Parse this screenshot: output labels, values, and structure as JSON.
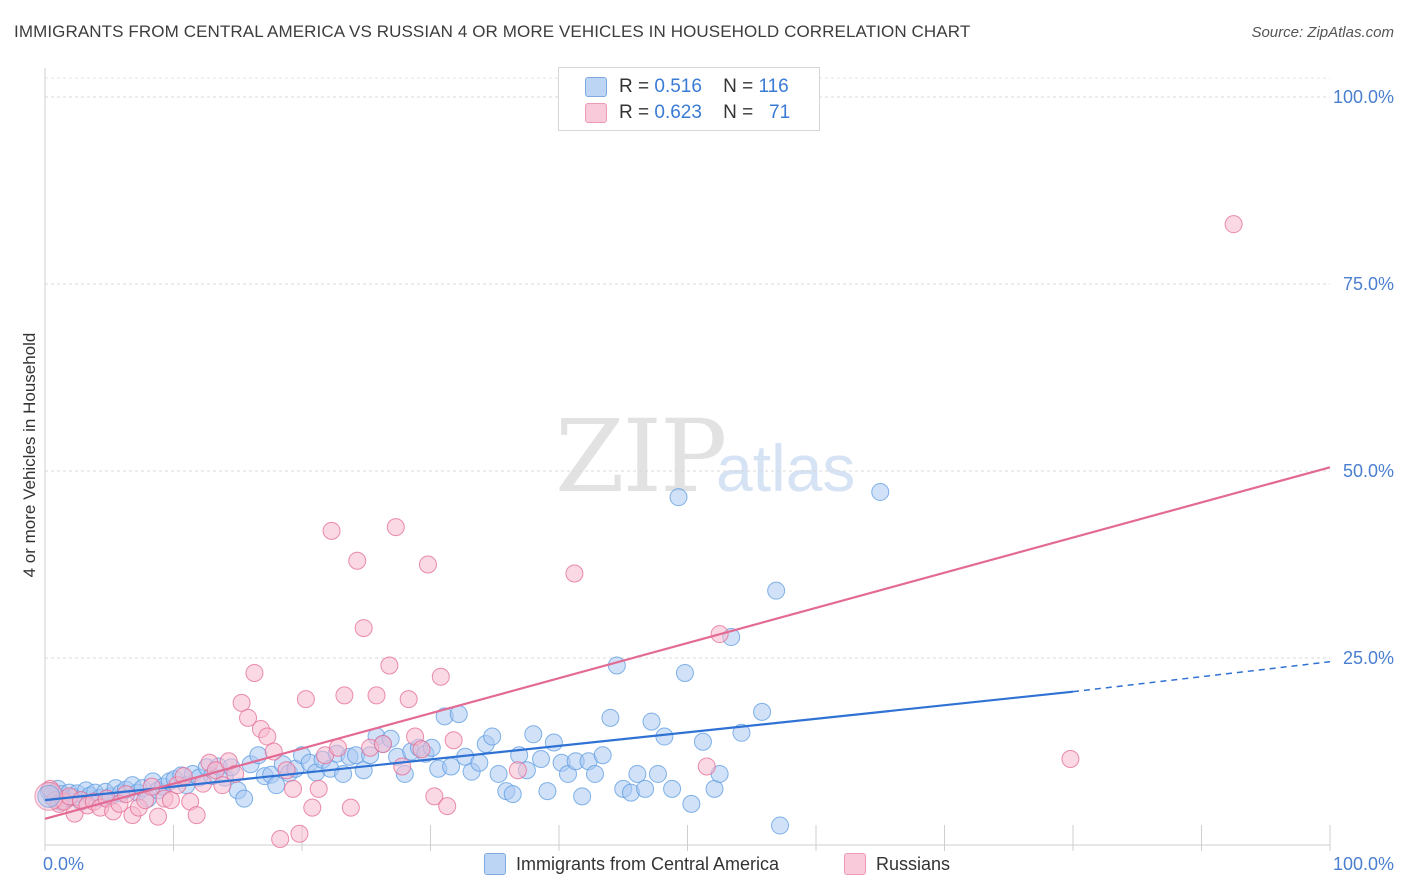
{
  "title": "IMMIGRANTS FROM CENTRAL AMERICA VS RUSSIAN 4 OR MORE VEHICLES IN HOUSEHOLD CORRELATION CHART",
  "source": "Source: ZipAtlas.com",
  "watermark": {
    "zip": "ZIP",
    "atlas": "atlas"
  },
  "legend_top": {
    "rows": [
      {
        "r_label": "R =",
        "r_value": "0.516",
        "n_label": "N =",
        "n_value": "116",
        "color": "#a9c9f2"
      },
      {
        "r_label": "R =",
        "r_value": "0.623",
        "n_label": "N =",
        "n_value": "71",
        "color": "#f7b9cd"
      }
    ]
  },
  "legend_bottom": [
    {
      "label": "Immigrants from Central America",
      "color": "#a9c9f2"
    },
    {
      "label": "Russians",
      "color": "#f7b9cd"
    }
  ],
  "chart_data": {
    "type": "scatter",
    "title": "IMMIGRANTS FROM CENTRAL AMERICA VS RUSSIAN 4 OR MORE VEHICLES IN HOUSEHOLD CORRELATION CHART",
    "xlabel": "",
    "ylabel": "4 or more Vehicles in Household",
    "xlim": [
      0,
      100
    ],
    "ylim": [
      0,
      105
    ],
    "x_tick_labels": [
      "0.0%",
      "100.0%"
    ],
    "y_tick_labels": [
      "25.0%",
      "50.0%",
      "75.0%",
      "100.0%"
    ],
    "y_ticks": [
      25,
      50,
      75,
      100
    ],
    "grid": true,
    "legend_position": "top-center",
    "series": [
      {
        "name": "Immigrants from Central America",
        "color": "#5b9be0",
        "fill": "#a9c9f2",
        "R": 0.516,
        "N": 116,
        "trend": {
          "x0": 0,
          "y0": 6.0,
          "x1": 80,
          "y1": 20.5,
          "dash_to_x": 100,
          "dash_to_y": 24.5
        },
        "points": [
          [
            0.3,
            7.2
          ],
          [
            0.5,
            6.5
          ],
          [
            0.8,
            6.0
          ],
          [
            1.0,
            7.5
          ],
          [
            1.3,
            6.8
          ],
          [
            1.6,
            6.2
          ],
          [
            1.9,
            7.0
          ],
          [
            2.2,
            6.4
          ],
          [
            2.5,
            6.9
          ],
          [
            2.8,
            5.8
          ],
          [
            3.2,
            7.3
          ],
          [
            3.5,
            6.6
          ],
          [
            3.9,
            7.0
          ],
          [
            4.3,
            6.3
          ],
          [
            4.7,
            7.1
          ],
          [
            5.1,
            6.5
          ],
          [
            5.5,
            7.6
          ],
          [
            5.9,
            6.9
          ],
          [
            6.3,
            7.4
          ],
          [
            6.8,
            8.0
          ],
          [
            7.2,
            7.0
          ],
          [
            7.6,
            7.6
          ],
          [
            8.0,
            6.2
          ],
          [
            8.4,
            8.5
          ],
          [
            8.8,
            7.3
          ],
          [
            9.2,
            7.8
          ],
          [
            9.7,
            8.5
          ],
          [
            10.1,
            8.8
          ],
          [
            10.6,
            9.3
          ],
          [
            11.0,
            8.0
          ],
          [
            11.5,
            9.5
          ],
          [
            12.0,
            9.0
          ],
          [
            12.6,
            10.4
          ],
          [
            13.0,
            9.2
          ],
          [
            13.5,
            10.5
          ],
          [
            14.0,
            9.0
          ],
          [
            14.5,
            10.4
          ],
          [
            15.0,
            7.3
          ],
          [
            15.5,
            6.2
          ],
          [
            16.0,
            10.8
          ],
          [
            16.6,
            12.0
          ],
          [
            17.1,
            9.2
          ],
          [
            17.6,
            9.4
          ],
          [
            18.0,
            8.0
          ],
          [
            18.5,
            10.8
          ],
          [
            19.0,
            9.6
          ],
          [
            19.5,
            10.2
          ],
          [
            20.0,
            12.0
          ],
          [
            20.6,
            11.0
          ],
          [
            21.1,
            9.7
          ],
          [
            21.6,
            11.4
          ],
          [
            22.2,
            10.2
          ],
          [
            22.7,
            12.2
          ],
          [
            23.2,
            9.5
          ],
          [
            23.7,
            11.8
          ],
          [
            24.2,
            12.0
          ],
          [
            24.8,
            10.0
          ],
          [
            25.3,
            12.0
          ],
          [
            25.8,
            14.5
          ],
          [
            26.3,
            13.5
          ],
          [
            26.9,
            14.2
          ],
          [
            27.4,
            11.8
          ],
          [
            28.0,
            9.5
          ],
          [
            28.5,
            12.5
          ],
          [
            29.1,
            13.0
          ],
          [
            29.6,
            12.2
          ],
          [
            30.1,
            13.0
          ],
          [
            30.6,
            10.2
          ],
          [
            31.1,
            17.2
          ],
          [
            31.6,
            10.5
          ],
          [
            32.2,
            17.5
          ],
          [
            32.7,
            11.8
          ],
          [
            33.2,
            9.8
          ],
          [
            33.8,
            11.0
          ],
          [
            34.3,
            13.5
          ],
          [
            34.8,
            14.5
          ],
          [
            35.3,
            9.5
          ],
          [
            35.9,
            7.2
          ],
          [
            36.4,
            6.8
          ],
          [
            36.9,
            12.0
          ],
          [
            37.5,
            10.0
          ],
          [
            38.0,
            14.8
          ],
          [
            38.6,
            11.5
          ],
          [
            39.1,
            7.2
          ],
          [
            39.6,
            13.7
          ],
          [
            40.2,
            11.0
          ],
          [
            40.7,
            9.5
          ],
          [
            41.3,
            11.2
          ],
          [
            41.8,
            6.5
          ],
          [
            42.3,
            11.2
          ],
          [
            42.8,
            9.5
          ],
          [
            43.4,
            12.0
          ],
          [
            44.0,
            17.0
          ],
          [
            44.5,
            24.0
          ],
          [
            45.0,
            7.5
          ],
          [
            45.6,
            7.0
          ],
          [
            46.1,
            9.5
          ],
          [
            46.7,
            7.5
          ],
          [
            47.2,
            16.5
          ],
          [
            47.7,
            9.5
          ],
          [
            48.2,
            14.5
          ],
          [
            48.8,
            7.5
          ],
          [
            49.3,
            46.5
          ],
          [
            49.8,
            23.0
          ],
          [
            50.3,
            5.5
          ],
          [
            51.2,
            13.8
          ],
          [
            52.1,
            7.5
          ],
          [
            52.5,
            9.5
          ],
          [
            53.4,
            27.8
          ],
          [
            54.2,
            15.0
          ],
          [
            55.8,
            17.8
          ],
          [
            56.9,
            34.0
          ],
          [
            65.0,
            47.2
          ],
          [
            57.2,
            2.6
          ],
          [
            1.2,
            5.8
          ],
          [
            0.6,
            6.9
          ]
        ]
      },
      {
        "name": "Russians",
        "color": "#e36a93",
        "fill": "#f7b9cd",
        "R": 0.623,
        "N": 71,
        "trend": {
          "x0": 0,
          "y0": 3.5,
          "x1": 100,
          "y1": 50.5
        },
        "points": [
          [
            0.4,
            7.5
          ],
          [
            0.8,
            6.0
          ],
          [
            1.1,
            5.5
          ],
          [
            1.5,
            5.8
          ],
          [
            1.9,
            6.5
          ],
          [
            2.3,
            4.2
          ],
          [
            2.8,
            6.0
          ],
          [
            3.3,
            5.3
          ],
          [
            3.8,
            5.8
          ],
          [
            4.3,
            5.0
          ],
          [
            4.8,
            6.2
          ],
          [
            5.3,
            4.5
          ],
          [
            5.8,
            5.5
          ],
          [
            6.3,
            6.8
          ],
          [
            6.8,
            4.0
          ],
          [
            7.3,
            5.0
          ],
          [
            7.8,
            6.0
          ],
          [
            8.3,
            7.8
          ],
          [
            8.8,
            3.8
          ],
          [
            9.3,
            6.2
          ],
          [
            9.8,
            6.0
          ],
          [
            10.3,
            8.0
          ],
          [
            10.8,
            9.2
          ],
          [
            11.3,
            5.8
          ],
          [
            11.8,
            4.0
          ],
          [
            12.3,
            8.2
          ],
          [
            12.8,
            11.0
          ],
          [
            13.3,
            10.0
          ],
          [
            13.8,
            8.0
          ],
          [
            14.3,
            11.2
          ],
          [
            14.8,
            9.5
          ],
          [
            15.3,
            19.0
          ],
          [
            15.8,
            17.0
          ],
          [
            16.3,
            23.0
          ],
          [
            16.8,
            15.5
          ],
          [
            17.3,
            14.5
          ],
          [
            17.8,
            12.5
          ],
          [
            18.3,
            0.8
          ],
          [
            18.8,
            10.0
          ],
          [
            19.3,
            7.5
          ],
          [
            19.8,
            1.5
          ],
          [
            20.3,
            19.5
          ],
          [
            20.8,
            5.0
          ],
          [
            21.3,
            7.5
          ],
          [
            21.8,
            12.0
          ],
          [
            22.3,
            42.0
          ],
          [
            22.8,
            13.0
          ],
          [
            23.3,
            20.0
          ],
          [
            23.8,
            5.0
          ],
          [
            24.3,
            38.0
          ],
          [
            24.8,
            29.0
          ],
          [
            25.3,
            13.0
          ],
          [
            25.8,
            20.0
          ],
          [
            26.3,
            13.5
          ],
          [
            26.8,
            24.0
          ],
          [
            27.3,
            42.5
          ],
          [
            27.8,
            10.5
          ],
          [
            28.3,
            19.5
          ],
          [
            28.8,
            14.5
          ],
          [
            29.3,
            12.8
          ],
          [
            29.8,
            37.5
          ],
          [
            30.3,
            6.5
          ],
          [
            30.8,
            22.5
          ],
          [
            31.3,
            5.2
          ],
          [
            31.8,
            14.0
          ],
          [
            36.8,
            10.0
          ],
          [
            41.2,
            36.3
          ],
          [
            52.5,
            28.2
          ],
          [
            79.8,
            11.5
          ],
          [
            92.5,
            83.0
          ],
          [
            51.5,
            10.5
          ]
        ]
      }
    ]
  }
}
